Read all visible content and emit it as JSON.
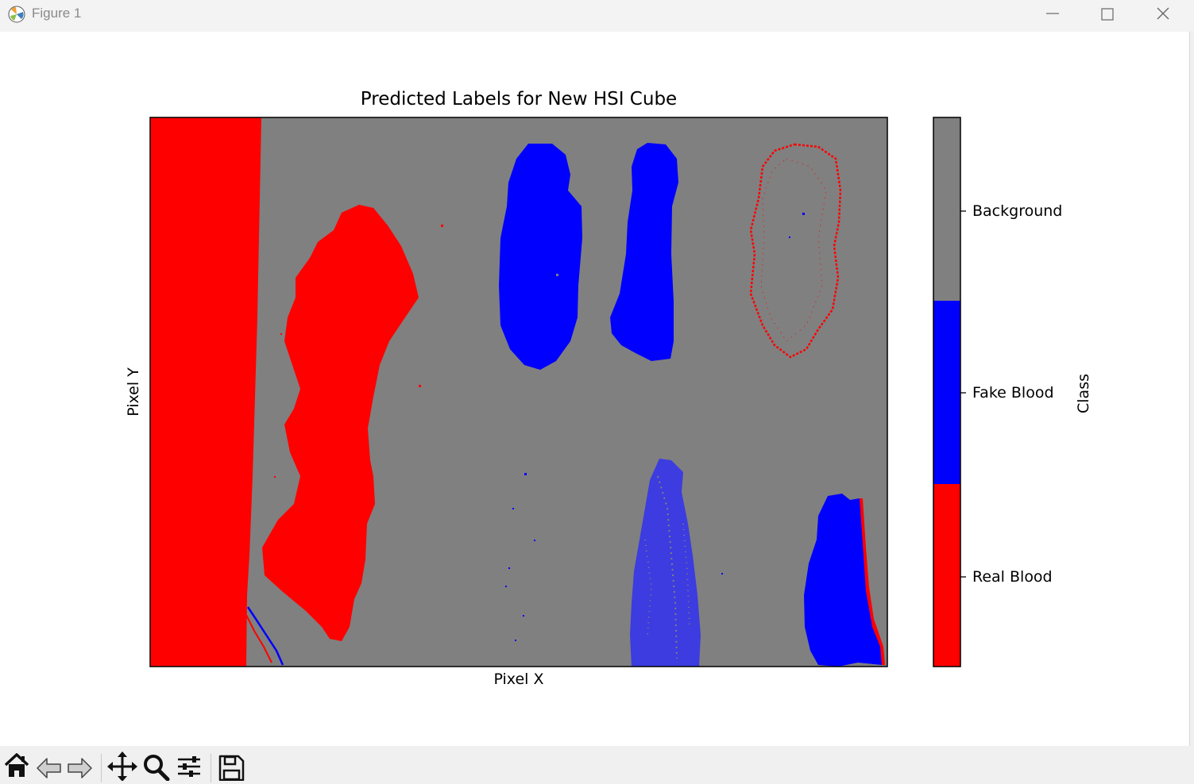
{
  "window": {
    "title": "Figure 1",
    "controls": [
      "minimize-icon",
      "maximize-icon",
      "close-icon"
    ]
  },
  "figure": {
    "title": "Predicted Labels for New HSI Cube",
    "xlabel": "Pixel X",
    "ylabel": "Pixel Y",
    "colorbar": {
      "label": "Class",
      "ticks": [
        "Background",
        "Fake Blood",
        "Real Blood"
      ],
      "colors": [
        "#808080",
        "#0000ff",
        "#ff0000"
      ]
    }
  },
  "chart_data": {
    "type": "heatmap",
    "title": "Predicted Labels for New HSI Cube",
    "xlabel": "Pixel X",
    "ylabel": "Pixel Y",
    "ticks_hidden": true,
    "classes": [
      {
        "name": "Real Blood",
        "value": 0,
        "color": "#ff0000"
      },
      {
        "name": "Fake Blood",
        "value": 1,
        "color": "#0000ff"
      },
      {
        "name": "Background",
        "value": 2,
        "color": "#808080"
      }
    ],
    "colorbar_label": "Class",
    "colorbar_position": "right"
  },
  "toolbar": {
    "buttons": [
      "home-icon",
      "back-icon",
      "forward-icon",
      "pan-icon",
      "zoom-icon",
      "configure-icon",
      "save-icon"
    ]
  }
}
